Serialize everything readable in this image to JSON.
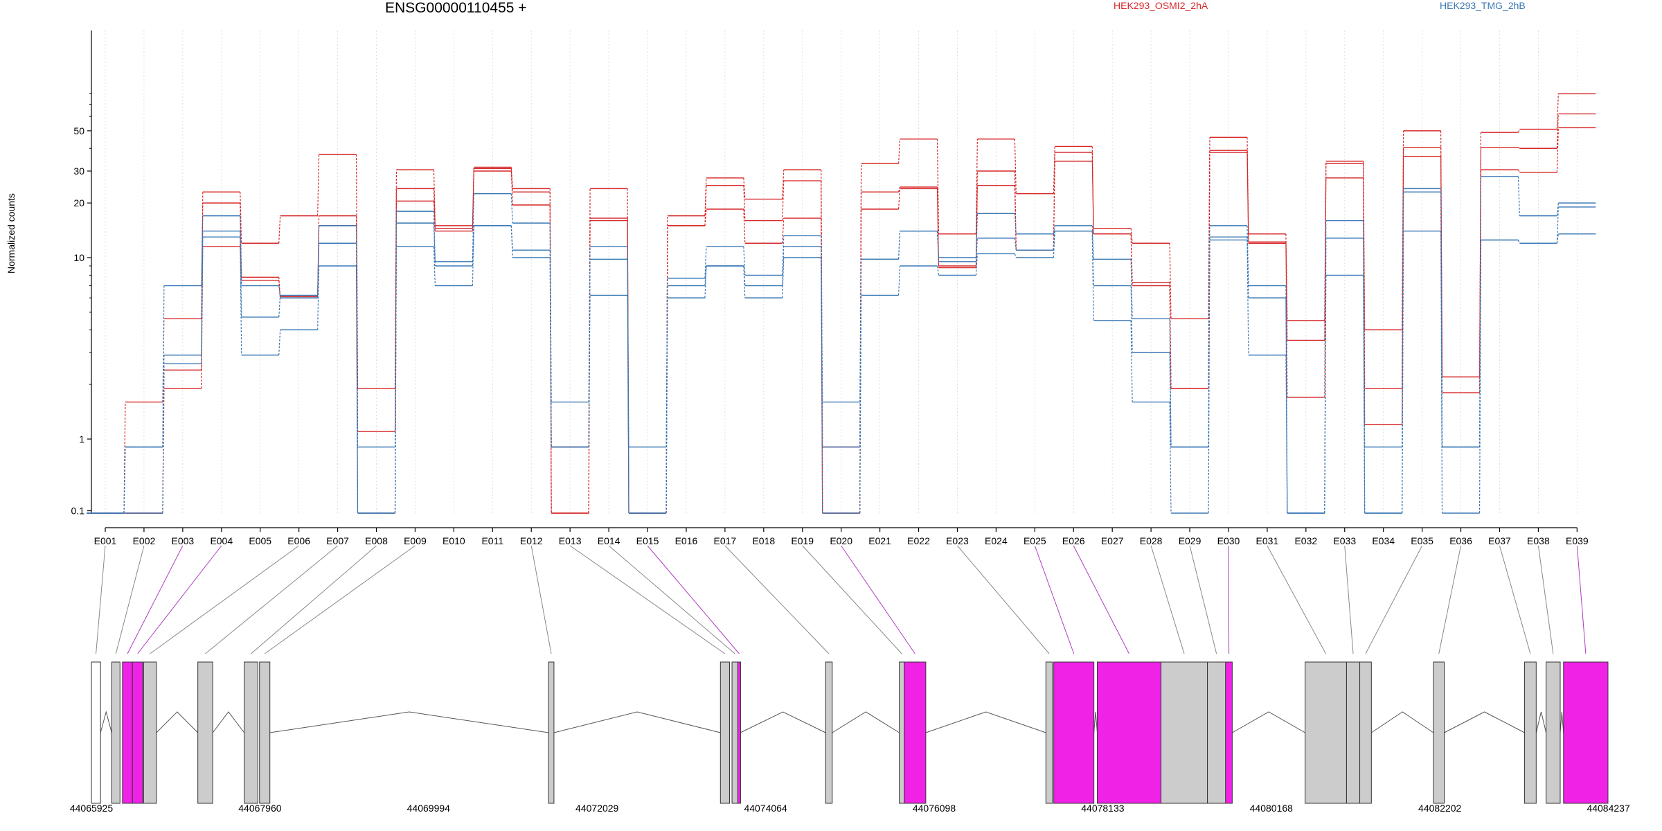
{
  "chart_data": {
    "type": "line",
    "title": "ENSG00000110455 +",
    "ylabel": "Normalized counts",
    "yscale": "log",
    "ytick_labels": [
      "0.1",
      "1",
      "10",
      "20",
      "30",
      "50"
    ],
    "yticks": [
      0.1,
      1,
      10,
      20,
      30,
      50
    ],
    "categories": [
      "E001",
      "E002",
      "E003",
      "E004",
      "E005",
      "E006",
      "E007",
      "E008",
      "E009",
      "E010",
      "E011",
      "E012",
      "E013",
      "E014",
      "E015",
      "E016",
      "E017",
      "E018",
      "E019",
      "E020",
      "E021",
      "E022",
      "E023",
      "E024",
      "E025",
      "E026",
      "E027",
      "E028",
      "E029",
      "E030",
      "E031",
      "E032",
      "E033",
      "E034",
      "E035",
      "E036",
      "E037",
      "E038",
      "E039"
    ],
    "legend": [
      {
        "label": "HEK293_OSMI2_2hA",
        "color": "#d62728"
      },
      {
        "label": "HEK293_TMG_2hB",
        "color": "#3a78b5"
      }
    ],
    "series": [
      {
        "group": "HEK293_OSMI2_2hA",
        "values": [
          0.07,
          1.6,
          4.6,
          23,
          12,
          17,
          37,
          1.9,
          30.5,
          15,
          31.5,
          24,
          0.07,
          24,
          0.07,
          17,
          27.5,
          21,
          30.5,
          0.07,
          33,
          45,
          13.5,
          45,
          22.5,
          41,
          14.5,
          12,
          4.6,
          46,
          13.5,
          4.5,
          34,
          4,
          50,
          2.2,
          49,
          51,
          80
        ]
      },
      {
        "group": "HEK293_OSMI2_2hA",
        "values": [
          0.07,
          0.07,
          2.4,
          20,
          7.8,
          6.1,
          17,
          1.1,
          24,
          14.5,
          30,
          23,
          0.9,
          16.5,
          0.07,
          15,
          25,
          16,
          26.5,
          0.9,
          23,
          24.5,
          8.8,
          30,
          11,
          38,
          13.5,
          7.3,
          1.9,
          39,
          12.2,
          3.5,
          27.5,
          1.2,
          40.5,
          1.8,
          40.5,
          40,
          62
        ]
      },
      {
        "group": "HEK293_OSMI2_2hA",
        "values": [
          0.07,
          0.07,
          1.9,
          11.5,
          7.5,
          6,
          15,
          0.07,
          20.5,
          14,
          31,
          19.5,
          0.07,
          16,
          0.07,
          15,
          18.5,
          12,
          16.5,
          0.07,
          18.5,
          24,
          9,
          25,
          11,
          34,
          13.5,
          7,
          1.9,
          38,
          12,
          1.7,
          33,
          1.9,
          36,
          2.2,
          30.5,
          29.5,
          52
        ]
      },
      {
        "group": "HEK293_TMG_2hB",
        "values": [
          0.07,
          0.9,
          7,
          17,
          7,
          6,
          15,
          0.9,
          18,
          9.5,
          22.5,
          15.5,
          1.6,
          11.5,
          0.9,
          7.7,
          11.5,
          8,
          13.2,
          1.6,
          9.8,
          14,
          10,
          17.5,
          13.5,
          15,
          9.8,
          4.6,
          0.9,
          15,
          7,
          0.07,
          16,
          0.9,
          24,
          0.9,
          28,
          17,
          20
        ]
      },
      {
        "group": "HEK293_TMG_2hB",
        "values": [
          0.07,
          0.9,
          2.9,
          14,
          4.7,
          6.2,
          12,
          0.07,
          15.5,
          9,
          15,
          11,
          0.9,
          9.8,
          0.07,
          7,
          9,
          7,
          11.5,
          0.9,
          9.8,
          14,
          9.5,
          12.8,
          11,
          14,
          7,
          3,
          0.9,
          12.5,
          6,
          0.07,
          12.8,
          0.07,
          23,
          0.9,
          12.5,
          12,
          19
        ]
      },
      {
        "group": "HEK293_TMG_2hB",
        "values": [
          0.07,
          0.07,
          2.6,
          13,
          2.9,
          4,
          9,
          0.07,
          11.5,
          7,
          15,
          10,
          0.9,
          6.2,
          0.07,
          6,
          9,
          6,
          10,
          0.07,
          6.2,
          9,
          8,
          10.5,
          10,
          14,
          4.5,
          1.6,
          0.07,
          13,
          2.9,
          0.07,
          8,
          0.07,
          14,
          0.07,
          12.5,
          12,
          13.5
        ]
      }
    ],
    "coordinate_labels": [
      "44065925",
      "44067960",
      "44069994",
      "44072029",
      "44074064",
      "44076098",
      "44078133",
      "44080168",
      "44082202",
      "44084237"
    ],
    "exon_structure": [
      {
        "start": 44065925,
        "end": 44066035,
        "kind": "empty",
        "link": 1
      },
      {
        "start": 44066170,
        "end": 44066270,
        "kind": "gray",
        "link": 2
      },
      {
        "start": 44066300,
        "end": 44066420,
        "kind": "magenta",
        "link": 3
      },
      {
        "start": 44066420,
        "end": 44066545,
        "kind": "magenta",
        "link": 4
      },
      {
        "start": 44066555,
        "end": 44066710,
        "kind": "gray",
        "link": 6
      },
      {
        "start": 44067210,
        "end": 44067390,
        "kind": "gray",
        "link": 7
      },
      {
        "start": 44067770,
        "end": 44067935,
        "kind": "gray",
        "link": 8
      },
      {
        "start": 44067955,
        "end": 44068080,
        "kind": "gray",
        "link": 9
      },
      {
        "start": 44071445,
        "end": 44071510,
        "kind": "gray",
        "link": 12
      },
      {
        "start": 44073520,
        "end": 44073630,
        "kind": "gray",
        "link": 13
      },
      {
        "start": 44073660,
        "end": 44073730,
        "kind": "gray",
        "link": 14
      },
      {
        "start": 44073730,
        "end": 44073760,
        "kind": "magenta",
        "link": 15
      },
      {
        "start": 44074790,
        "end": 44074870,
        "kind": "gray",
        "link": 17
      },
      {
        "start": 44075680,
        "end": 44075740,
        "kind": "gray",
        "link": 19
      },
      {
        "start": 44075740,
        "end": 44076000,
        "kind": "magenta",
        "link": 20
      },
      {
        "start": 44077450,
        "end": 44077530,
        "kind": "gray",
        "link": 23
      },
      {
        "start": 44077545,
        "end": 44078030,
        "kind": "magenta",
        "link": 25
      },
      {
        "start": 44078070,
        "end": 44078840,
        "kind": "magenta",
        "link": 26
      },
      {
        "start": 44078840,
        "end": 44079400,
        "kind": "gray",
        "link": 28
      },
      {
        "start": 44079400,
        "end": 44079620,
        "kind": "gray",
        "link": 29
      },
      {
        "start": 44079620,
        "end": 44079700,
        "kind": "magenta",
        "link": 30
      },
      {
        "start": 44080580,
        "end": 44081080,
        "kind": "gray",
        "link": 31
      },
      {
        "start": 44081080,
        "end": 44081240,
        "kind": "gray",
        "link": 33
      },
      {
        "start": 44081240,
        "end": 44081380,
        "kind": "gray",
        "link": 35
      },
      {
        "start": 44082130,
        "end": 44082260,
        "kind": "gray",
        "link": 36
      },
      {
        "start": 44083230,
        "end": 44083370,
        "kind": "gray",
        "link": 37
      },
      {
        "start": 44083490,
        "end": 44083660,
        "kind": "gray",
        "link": 38
      },
      {
        "start": 44083700,
        "end": 44084237,
        "kind": "magenta",
        "link": 39
      }
    ]
  }
}
